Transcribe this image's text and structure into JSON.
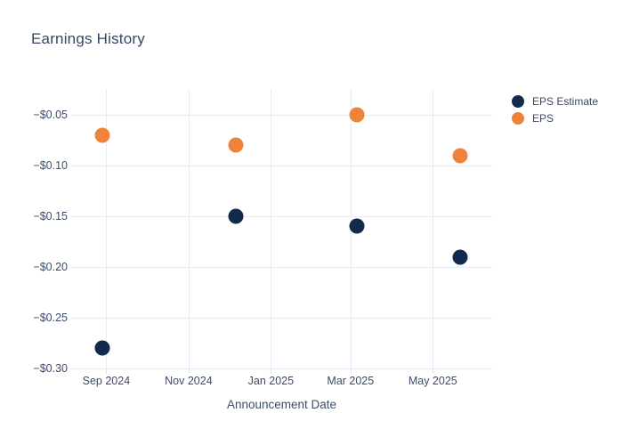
{
  "header": {
    "title": "Earnings History"
  },
  "chart_data": {
    "type": "scatter",
    "title": "Earnings History",
    "xlabel": "Announcement Date",
    "ylabel": "",
    "x": [
      "2024-08-29",
      "2024-12-06",
      "2025-03-06",
      "2025-05-21"
    ],
    "series": [
      {
        "name": "EPS Estimate",
        "color": "#122a4c",
        "values": [
          -0.28,
          -0.15,
          -0.16,
          -0.19
        ]
      },
      {
        "name": "EPS",
        "color": "#f0833c",
        "values": [
          -0.07,
          -0.08,
          -0.05,
          -0.09
        ]
      }
    ],
    "x_ticks": [
      {
        "date": "2024-09-01",
        "label": "Sep 2024"
      },
      {
        "date": "2024-11-01",
        "label": "Nov 2024"
      },
      {
        "date": "2025-01-01",
        "label": "Jan 2025"
      },
      {
        "date": "2025-03-01",
        "label": "Mar 2025"
      },
      {
        "date": "2025-05-01",
        "label": "May 2025"
      }
    ],
    "y_ticks": [
      {
        "value": -0.05,
        "label": "−$0.05"
      },
      {
        "value": -0.1,
        "label": "−$0.10"
      },
      {
        "value": -0.15,
        "label": "−$0.15"
      },
      {
        "value": -0.2,
        "label": "−$0.20"
      },
      {
        "value": -0.25,
        "label": "−$0.25"
      },
      {
        "value": -0.3,
        "label": "−$0.30"
      }
    ],
    "x_range": [
      "2024-08-06",
      "2025-06-14"
    ],
    "y_range": [
      -0.3,
      -0.0246
    ],
    "grid": true,
    "legend_position": "right",
    "marker_size_px": 17,
    "colors": {
      "background": "#ffffff",
      "gridline": "#e8ebf3",
      "axis_text": "#3e4c69",
      "title_text": "#344666"
    }
  }
}
